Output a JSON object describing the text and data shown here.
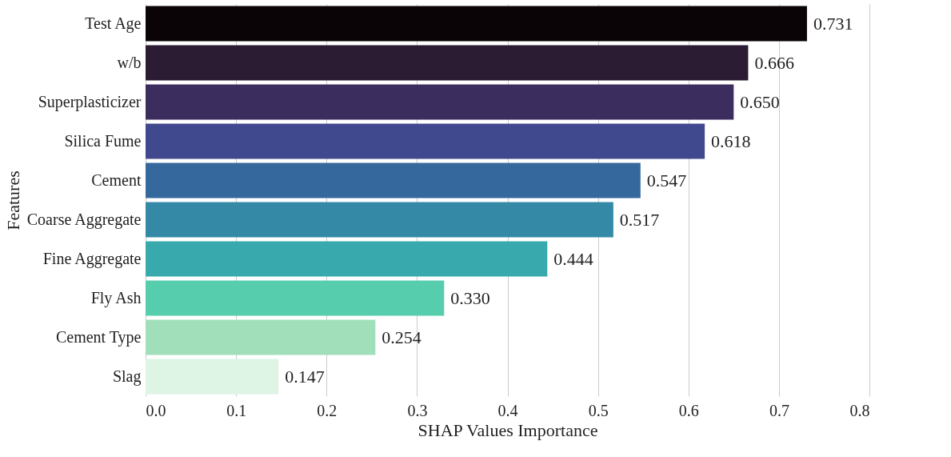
{
  "chart_data": {
    "type": "bar",
    "orientation": "horizontal",
    "xlabel": "SHAP Values Importance",
    "ylabel": "Features",
    "categories": [
      "Test Age",
      "w/b",
      "Superplasticizer",
      "Silica Fume",
      "Cement",
      "Coarse Aggregate",
      "Fine Aggregate",
      "Fly Ash",
      "Cement Type",
      "Slag"
    ],
    "values": [
      0.731,
      0.666,
      0.65,
      0.618,
      0.547,
      0.517,
      0.444,
      0.33,
      0.254,
      0.147
    ],
    "value_labels": [
      "0.731",
      "0.666",
      "0.650",
      "0.618",
      "0.547",
      "0.517",
      "0.444",
      "0.330",
      "0.254",
      "0.147"
    ],
    "colors": [
      "#0b0406",
      "#2b1b33",
      "#3c2d5f",
      "#40498e",
      "#35699e",
      "#348aa6",
      "#38a9ad",
      "#56cdac",
      "#a0dfb9",
      "#def5e5"
    ],
    "xlim": [
      0,
      0.8
    ],
    "xticks": [
      {
        "value": 0,
        "label": "0.0"
      },
      {
        "value": 0.1,
        "label": "0.1"
      },
      {
        "value": 0.2,
        "label": "0.2"
      },
      {
        "value": 0.3,
        "label": "0.3"
      },
      {
        "value": 0.4,
        "label": "0.4"
      },
      {
        "value": 0.5,
        "label": "0.5"
      },
      {
        "value": 0.6,
        "label": "0.6"
      },
      {
        "value": 0.7,
        "label": "0.7"
      },
      {
        "value": 0.8,
        "label": "0.8"
      }
    ],
    "grid": "x"
  }
}
